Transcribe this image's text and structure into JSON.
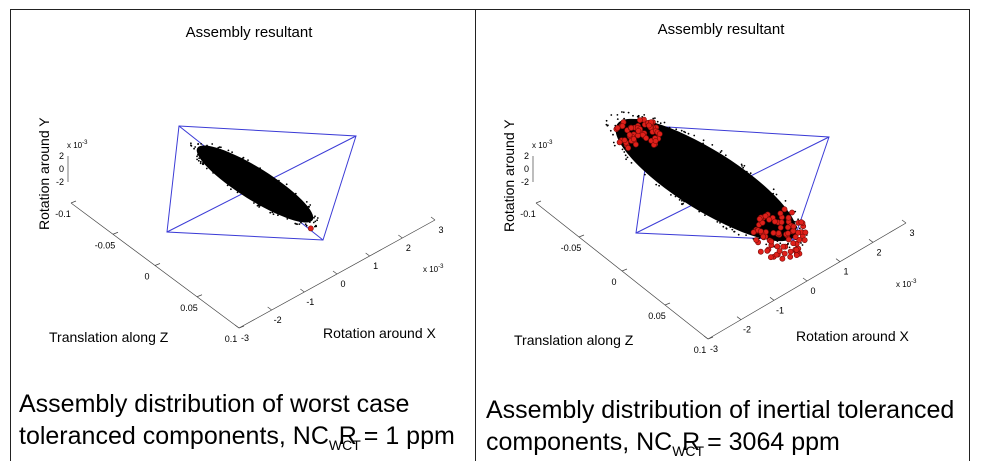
{
  "panels": [
    {
      "title": "Assembly resultant",
      "ylabel": "Rotation around Y",
      "zlabel": "Translation along Z",
      "xlabel": "Rotation around X",
      "exp_y": "x 10",
      "exp_x": "x 10",
      "exp_sup": "-3",
      "caption_line1": "Assembly distribution of worst case",
      "caption_line2_pre": "toleranced components, NC",
      "caption_line2_sub": "WCT",
      "caption_line2_r": "R",
      "caption_line2_post": " = 1 ppm"
    },
    {
      "title": "Assembly resultant",
      "ylabel": "Rotation around Y",
      "zlabel": "Translation along Z",
      "xlabel": "Rotation around X",
      "exp_y": "x 10",
      "exp_x": "x 10",
      "exp_sup": "-3",
      "caption_line1": "Assembly distribution of inertial toleranced",
      "caption_line2_pre": "components, NC",
      "caption_line2_sub": "WCT",
      "caption_line2_r": "R",
      "caption_line2_post": " = 3064 ppm"
    }
  ],
  "chart_data": [
    {
      "type": "scatter",
      "title": "Assembly resultant",
      "xlabel": "Rotation around X",
      "ylabel": "Rotation around Y",
      "zlabel": "Translation along Z",
      "x_ticks": [
        -3,
        -2,
        -1,
        0,
        1,
        2,
        3
      ],
      "y_ticks": [
        -2,
        0,
        2
      ],
      "z_ticks": [
        -0.1,
        -0.05,
        0,
        0.05,
        0.1
      ],
      "x_scale": "x 10^-3",
      "y_scale": "x 10^-3",
      "nonconforming_ppm": 1,
      "colors": {
        "conforming": "#000000",
        "nonconforming": "#e0201a",
        "tolerance_box": "#3b3bd6"
      }
    },
    {
      "type": "scatter",
      "title": "Assembly resultant",
      "xlabel": "Rotation around X",
      "ylabel": "Rotation around Y",
      "zlabel": "Translation along Z",
      "x_ticks": [
        -3,
        -2,
        -1,
        0,
        1,
        2,
        3
      ],
      "y_ticks": [
        -2,
        0,
        2
      ],
      "z_ticks": [
        -0.1,
        -0.05,
        0,
        0.05,
        0.1
      ],
      "x_scale": "x 10^-3",
      "y_scale": "x 10^-3",
      "nonconforming_ppm": 3064,
      "colors": {
        "conforming": "#000000",
        "nonconforming": "#e0201a",
        "tolerance_box": "#3b3bd6"
      }
    }
  ]
}
